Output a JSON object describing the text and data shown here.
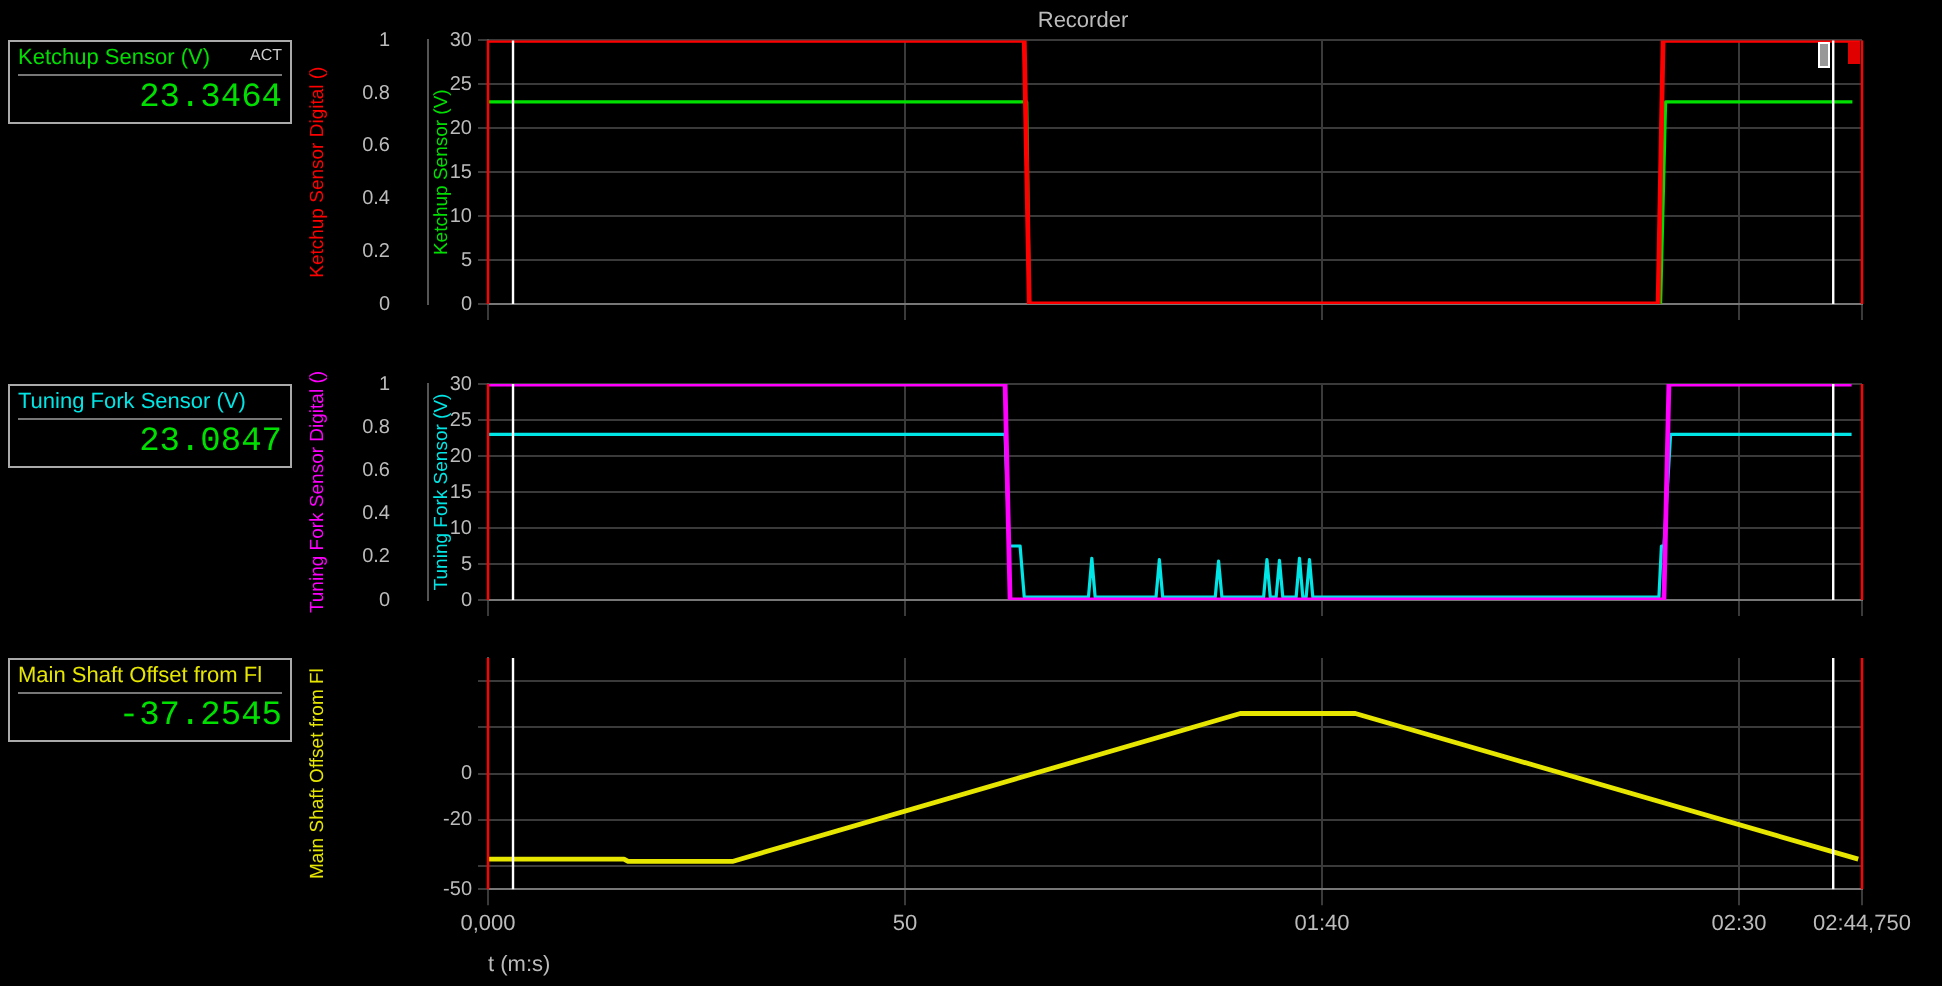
{
  "chart_data": [
    {
      "type": "line",
      "title": "Recorder",
      "ylabel": "Ketchup Sensor Digital ()",
      "y2label": "Ketchup Sensor (V)",
      "annotations": [
        "Ketchup Sensor (V)",
        "ACT",
        "23.3464"
      ],
      "xlim": [
        0,
        164.75
      ],
      "xticks": [
        0,
        50,
        100,
        150,
        164.75
      ],
      "ylim": [
        0,
        1
      ],
      "yticks": [
        0,
        0.2,
        0.4,
        0.6,
        0.8,
        1
      ],
      "y2lim": [
        0,
        30
      ],
      "y2ticks": [
        0,
        5,
        10,
        15,
        20,
        25,
        30
      ],
      "grid": true,
      "tick_labels": "y",
      "ref_lines": [
        {
          "axis": "x",
          "value": 0,
          "color": "#ff0000"
        },
        {
          "axis": "x",
          "value": 3,
          "color": "#ffffff"
        },
        {
          "axis": "x",
          "value": 161.3,
          "color": "#ffffff"
        },
        {
          "axis": "x",
          "value": 164.75,
          "color": "#ff0000"
        }
      ],
      "series": [
        {
          "color": "#ff0000",
          "x": [
            0,
            64.3,
            64.9,
            140.3,
            140.9,
            164.5
          ],
          "values": [
            1,
            1,
            0,
            0,
            1,
            1
          ]
        },
        {
          "color": "#00e000",
          "axis": "y2",
          "x": [
            0,
            64.6,
            64.9,
            140.6,
            141.2,
            163.6
          ],
          "values": [
            23,
            23,
            0,
            0,
            23,
            23
          ]
        }
      ]
    },
    {
      "type": "line",
      "ylabel": "Tuning Fork Sensor Digital ()",
      "y2label": "Tuning Fork Sensor (V)",
      "annotations": [
        "Tuning Fork Sensor (V)",
        "23.0847"
      ],
      "xlim": [
        0,
        164.75
      ],
      "xticks": [
        0,
        50,
        100,
        150,
        164.75
      ],
      "ylim": [
        0,
        1
      ],
      "yticks": [
        0,
        0.2,
        0.4,
        0.6,
        0.8,
        1
      ],
      "y2lim": [
        0,
        30
      ],
      "y2ticks": [
        0,
        5,
        10,
        15,
        20,
        25,
        30
      ],
      "grid": true,
      "tick_labels": "y",
      "ref_lines": [
        {
          "axis": "x",
          "value": 0,
          "color": "#ff0000"
        },
        {
          "axis": "x",
          "value": 3,
          "color": "#ffffff"
        },
        {
          "axis": "x",
          "value": 161.3,
          "color": "#ffffff"
        },
        {
          "axis": "x",
          "value": 164.75,
          "color": "#ff0000"
        }
      ],
      "series": [
        {
          "color": "#ff00ff",
          "x": [
            0,
            62.0,
            62.6,
            141.0,
            141.6,
            163.5
          ],
          "values": [
            1,
            1,
            0,
            0,
            1,
            1
          ]
        },
        {
          "color": "#00e5e5",
          "axis": "y2",
          "x": [
            0,
            62.0,
            62.5,
            63.8,
            64.3,
            72,
            72.4,
            72.8,
            80.1,
            80.5,
            80.9,
            87.2,
            87.6,
            88,
            93,
            93.4,
            93.8,
            94.5,
            94.9,
            95.3,
            96.9,
            97.3,
            97.7,
            98.1,
            98.5,
            98.9,
            140.4,
            140.7,
            141,
            141.8,
            163.5
          ],
          "values": [
            23,
            23,
            7.5,
            7.5,
            0.4,
            0.4,
            5.8,
            0.4,
            0.4,
            5.6,
            0.4,
            0.4,
            5.4,
            0.4,
            0.4,
            5.6,
            0.4,
            0.4,
            5.5,
            0.4,
            0.4,
            5.8,
            0.4,
            0.4,
            5.6,
            0.4,
            0.4,
            7.5,
            7.5,
            23,
            23
          ]
        }
      ]
    },
    {
      "type": "line",
      "ylabel": "Main Shaft Offset from Fl",
      "xlabel": "t (m:s)",
      "annotations": [
        "Main Shaft Offset from Fl",
        "-37.2545"
      ],
      "xlim": [
        0,
        164.75
      ],
      "xticks": [
        {
          "value": 0,
          "label": "0,000"
        },
        50,
        {
          "value": 100,
          "label": "01:40"
        },
        {
          "value": 150,
          "label": "02:30"
        },
        {
          "value": 164.75,
          "label": "02:44,750"
        }
      ],
      "ylim": [
        -50,
        50
      ],
      "yticks": [
        -50,
        {
          "value": -40,
          "label": null
        },
        -20,
        0,
        {
          "value": 20,
          "label": null
        },
        {
          "value": 40,
          "label": null
        }
      ],
      "grid": true,
      "ref_lines": [
        {
          "axis": "x",
          "value": 0,
          "color": "#ff0000"
        },
        {
          "axis": "x",
          "value": 3,
          "color": "#ffffff"
        },
        {
          "axis": "x",
          "value": 161.3,
          "color": "#ffffff"
        },
        {
          "axis": "x",
          "value": 164.75,
          "color": "#ff0000"
        }
      ],
      "series": [
        {
          "color": "#e6e600",
          "x": [
            0,
            16.3,
            16.8,
            29.3,
            90.2,
            104,
            164.3
          ],
          "values": [
            -37,
            -37,
            -38,
            -38,
            26,
            26,
            -37
          ]
        }
      ]
    }
  ]
}
